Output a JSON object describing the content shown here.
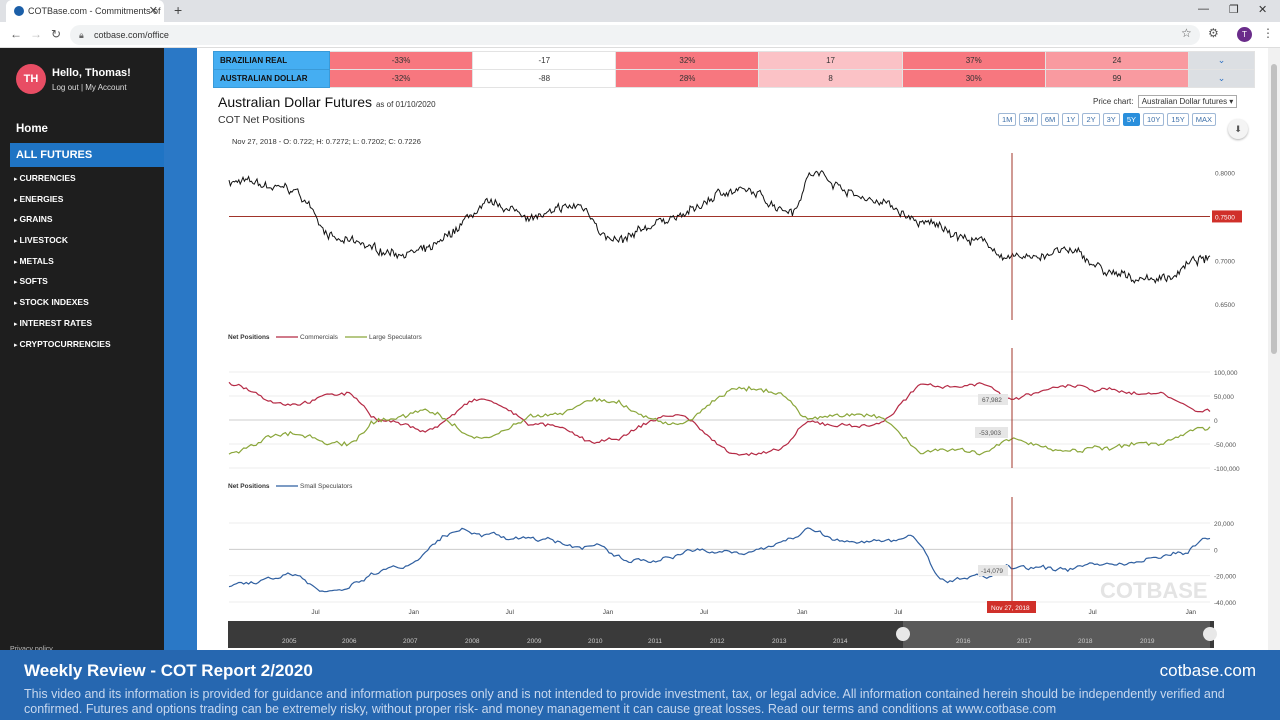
{
  "browser": {
    "tab_title": "COTBase.com - Commitments of",
    "new_tab": "+",
    "url": "cotbase.com/office",
    "profile_initial": "T"
  },
  "user": {
    "initials": "TH",
    "greeting": "Hello, Thomas!",
    "logout": "Log out",
    "separator": "|",
    "account": "My Account"
  },
  "nav": {
    "home": "Home",
    "all_futures": "ALL FUTURES",
    "items": [
      "CURRENCIES",
      "ENERGIES",
      "GRAINS",
      "LIVESTOCK",
      "METALS",
      "SOFTS",
      "STOCK INDEXES",
      "INTEREST RATES",
      "CRYPTOCURRENCIES"
    ],
    "privacy": "Privacy policy"
  },
  "table": {
    "rows": [
      {
        "name": "BRAZILIAN REAL",
        "cells": [
          "-33%",
          "-17",
          "32%",
          "17",
          "37%",
          "24"
        ]
      },
      {
        "name": "AUSTRALIAN DOLLAR",
        "cells": [
          "-32%",
          "-88",
          "28%",
          "8",
          "30%",
          "99"
        ]
      }
    ],
    "colors": [
      "#f7777f",
      "#ffffff",
      "#f7777f",
      "#fbc2c6",
      "#f7777f",
      "#f99aa0"
    ]
  },
  "chart_header": {
    "title": "Australian Dollar Futures",
    "as_of": "as of 01/10/2020",
    "subtitle": "COT Net Positions",
    "price_chart_label": "Price chart:",
    "price_chart_select": "Australian Dollar futures ▾",
    "ranges": [
      "1M",
      "3M",
      "6M",
      "1Y",
      "2Y",
      "3Y",
      "5Y",
      "10Y",
      "15Y",
      "MAX"
    ],
    "active_range": "5Y",
    "ohlc": "Nov 27, 2018 - O: 0.722; H: 0.7272; L: 0.7202; C: 0.7226",
    "download_icon": "download-icon"
  },
  "chart_data": [
    {
      "type": "line",
      "title": "Australian Dollar futures price",
      "series": [
        {
          "name": "Price",
          "color": "#111111"
        }
      ],
      "ylabels": [
        "0.8000",
        "0.7500",
        "0.7000",
        "0.6500"
      ],
      "ylim": [
        0.64,
        0.82
      ],
      "marker_value": "0.7500",
      "x_range": [
        2015.0,
        2020.05
      ],
      "anchors": [
        [
          2015.0,
          0.79
        ],
        [
          2015.3,
          0.78
        ],
        [
          2015.6,
          0.72
        ],
        [
          2015.8,
          0.71
        ],
        [
          2016.0,
          0.71
        ],
        [
          2016.35,
          0.76
        ],
        [
          2016.6,
          0.75
        ],
        [
          2016.8,
          0.76
        ],
        [
          2017.0,
          0.72
        ],
        [
          2017.3,
          0.75
        ],
        [
          2017.6,
          0.78
        ],
        [
          2017.9,
          0.76
        ],
        [
          2018.0,
          0.8
        ],
        [
          2018.3,
          0.77
        ],
        [
          2018.6,
          0.74
        ],
        [
          2018.9,
          0.72
        ],
        [
          2019.0,
          0.7
        ],
        [
          2019.3,
          0.71
        ],
        [
          2019.6,
          0.68
        ],
        [
          2019.8,
          0.68
        ],
        [
          2020.0,
          0.7
        ]
      ]
    },
    {
      "type": "line",
      "title": "Net Positions",
      "legend": [
        "Commercials",
        "Large Speculators"
      ],
      "series": [
        {
          "name": "Commercials",
          "color": "#b52a45"
        },
        {
          "name": "Large Speculators",
          "color": "#8aa63a"
        }
      ],
      "ylabels": [
        "100,000",
        "50,000",
        "0",
        "-50,000",
        "-100,000"
      ],
      "ylim": [
        -100000,
        100000
      ],
      "readouts": [
        "67,982",
        "-53,903"
      ],
      "com_anchors": [
        [
          2015.0,
          78000
        ],
        [
          2015.3,
          40000
        ],
        [
          2015.6,
          55000
        ],
        [
          2015.8,
          0
        ],
        [
          2016.0,
          -20000
        ],
        [
          2016.3,
          40000
        ],
        [
          2016.6,
          -10000
        ],
        [
          2016.9,
          -50000
        ],
        [
          2017.3,
          10000
        ],
        [
          2017.6,
          -65000
        ],
        [
          2017.8,
          -70000
        ],
        [
          2018.0,
          -10000
        ],
        [
          2018.3,
          -10000
        ],
        [
          2018.6,
          70000
        ],
        [
          2018.9,
          75000
        ],
        [
          2019.0,
          45000
        ],
        [
          2019.3,
          68000
        ],
        [
          2019.6,
          60000
        ],
        [
          2019.8,
          55000
        ],
        [
          2020.0,
          20000
        ]
      ]
    },
    {
      "type": "line",
      "title": "Net Positions",
      "legend": [
        "Small Speculators"
      ],
      "series": [
        {
          "name": "Small Speculators",
          "color": "#2f5fa0"
        }
      ],
      "ylabels": [
        "20,000",
        "0",
        "-20,000",
        "-40,000"
      ],
      "ylim": [
        -40000,
        25000
      ],
      "readout": "-14,079",
      "anchors": [
        [
          2015.0,
          -28000
        ],
        [
          2015.3,
          -20000
        ],
        [
          2015.5,
          -30000
        ],
        [
          2015.9,
          -10000
        ],
        [
          2016.2,
          16000
        ],
        [
          2016.5,
          8000
        ],
        [
          2016.8,
          4000
        ],
        [
          2017.1,
          -10000
        ],
        [
          2017.4,
          0
        ],
        [
          2017.7,
          -2000
        ],
        [
          2018.0,
          18000
        ],
        [
          2018.2,
          5000
        ],
        [
          2018.5,
          10000
        ],
        [
          2018.7,
          -25000
        ],
        [
          2018.9,
          -20000
        ],
        [
          2019.0,
          -10000
        ],
        [
          2019.3,
          -16000
        ],
        [
          2019.6,
          -10000
        ],
        [
          2019.9,
          -4000
        ],
        [
          2020.05,
          10000
        ]
      ]
    }
  ],
  "x_axis": {
    "labels": [
      "Jul",
      "Jan",
      "Jul",
      "Jan",
      "Jul",
      "Jan",
      "Jul",
      "Jan",
      "Jul",
      "Jan"
    ],
    "crosshair_label": "Nov 27, 2018"
  },
  "navigator": {
    "years": [
      "2005",
      "2006",
      "2007",
      "2008",
      "2009",
      "2010",
      "2011",
      "2012",
      "2013",
      "2014",
      "2016",
      "2017",
      "2018",
      "2019"
    ]
  },
  "watermark": "COTBASE",
  "footer": {
    "title": "Weekly Review - COT Report 2/2020",
    "site": "cotbase.com",
    "disclaimer": "This video and its information is provided for guidance and information purposes only and is not intended to provide investment, tax, or legal advice. All information contained herein should be independently verified and confirmed. Futures and options trading can be extremely risky, without proper risk- and money management it can cause great losses. Read our terms and conditions at www.cotbase.com"
  }
}
